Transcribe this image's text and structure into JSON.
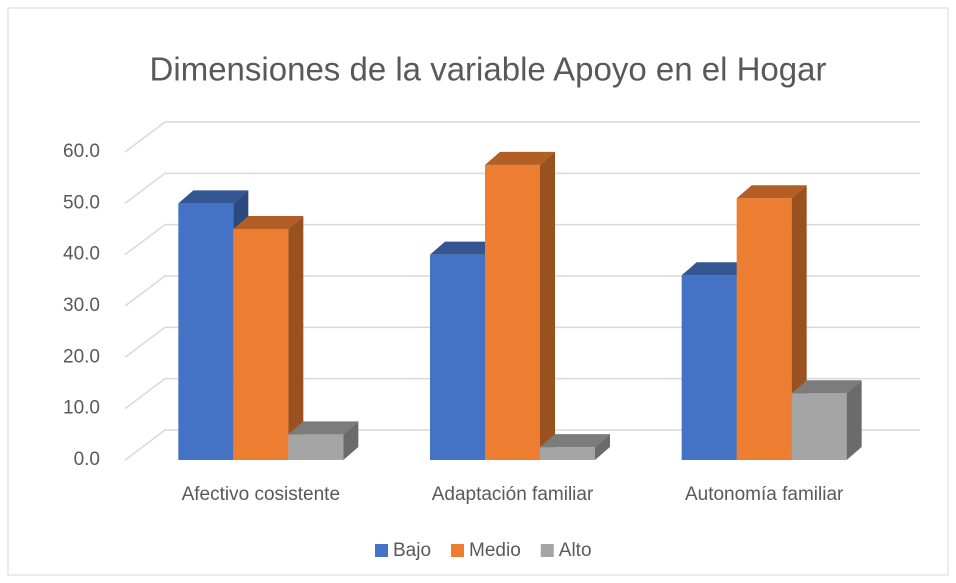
{
  "chart_data": {
    "type": "bar3d",
    "title": "Dimensiones de la variable Apoyo en el Hogar",
    "categories": [
      "Afectivo cosistente",
      "Adaptación familiar",
      "Autonomía familiar"
    ],
    "series": [
      {
        "name": "Bajo",
        "color": "#4472c4",
        "values": [
          50,
          40,
          36
        ]
      },
      {
        "name": "Medio",
        "color": "#ed7d31",
        "values": [
          45,
          57.5,
          51
        ]
      },
      {
        "name": "Alto",
        "color": "#a5a5a5",
        "values": [
          5,
          2.5,
          13
        ]
      }
    ],
    "ylim": [
      0,
      60
    ],
    "yticks": [
      {
        "value": 0,
        "label": "0.0"
      },
      {
        "value": 10,
        "label": "10.0"
      },
      {
        "value": 20,
        "label": "20.0"
      },
      {
        "value": 30,
        "label": "30.0"
      },
      {
        "value": 40,
        "label": "40.0"
      },
      {
        "value": 50,
        "label": "50.0"
      },
      {
        "value": 60,
        "label": "60.0"
      }
    ],
    "grid": true,
    "legend": "bottom"
  }
}
